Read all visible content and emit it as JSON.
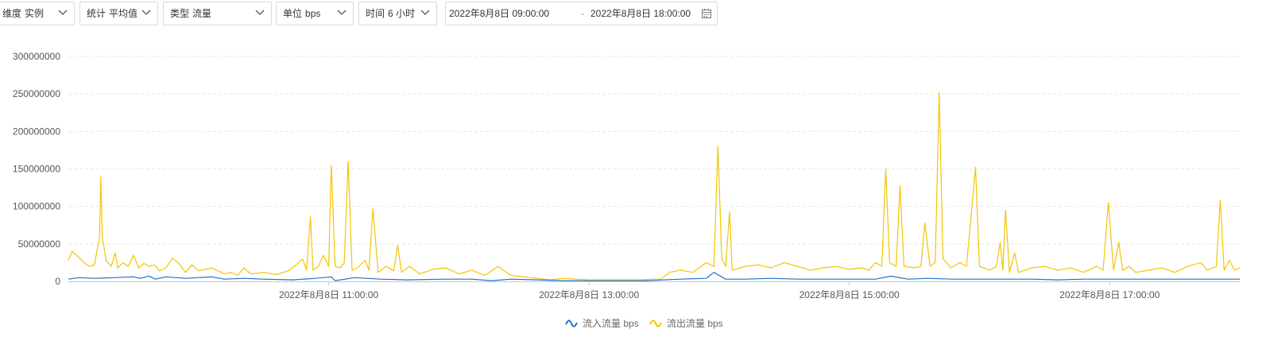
{
  "filters": {
    "dimension": {
      "key": "维度",
      "value": "实例"
    },
    "statistic": {
      "key": "统计",
      "value": "平均值"
    },
    "type": {
      "key": "类型",
      "value": "流量"
    },
    "unit": {
      "key": "单位",
      "value": "bps"
    },
    "time": {
      "key": "时间",
      "value": "6 小时"
    },
    "range": {
      "start": "2022年8月8日 09:00:00",
      "separator": "-",
      "end": "2022年8月8日 18:00:00"
    }
  },
  "colors": {
    "inbound": "#1f72c8",
    "outbound": "#f5c400",
    "grid": "#e8e8e8",
    "axis": "#c8c8c8"
  },
  "chart_data": {
    "type": "line",
    "x_start": "2022-08-08 09:00",
    "x_end": "2022-08-08 18:00",
    "xlim": [
      0,
      9
    ],
    "ylim": [
      0,
      300000000
    ],
    "yticks": [
      0,
      50000000,
      100000000,
      150000000,
      200000000,
      250000000,
      300000000
    ],
    "ytick_labels": [
      "0",
      "50000000",
      "100000000",
      "150000000",
      "200000000",
      "250000000",
      "300000000"
    ],
    "xticks": [
      2,
      4,
      6,
      8
    ],
    "xtick_labels": [
      "2022年8月8日 11:00:00",
      "2022年8月8日 13:00:00",
      "2022年8月8日 15:00:00",
      "2022年8月8日 17:00:00"
    ],
    "grid": true,
    "legend_position": "bottom-center",
    "series": [
      {
        "name": "流入流量 bps",
        "color_key": "inbound",
        "points": [
          [
            0.0,
            3000000
          ],
          [
            0.08,
            5000000
          ],
          [
            0.2,
            4000000
          ],
          [
            0.35,
            5000000
          ],
          [
            0.5,
            6000000
          ],
          [
            0.55,
            4000000
          ],
          [
            0.62,
            7000000
          ],
          [
            0.67,
            3000000
          ],
          [
            0.75,
            6000000
          ],
          [
            0.9,
            4000000
          ],
          [
            1.1,
            6000000
          ],
          [
            1.2,
            3000000
          ],
          [
            1.35,
            4000000
          ],
          [
            1.5,
            3000000
          ],
          [
            1.72,
            2000000
          ],
          [
            1.9,
            4000000
          ],
          [
            2.02,
            6000000
          ],
          [
            2.05,
            1000000
          ],
          [
            2.2,
            5000000
          ],
          [
            2.4,
            3000000
          ],
          [
            2.6,
            2000000
          ],
          [
            2.9,
            3000000
          ],
          [
            3.1,
            3000000
          ],
          [
            3.25,
            1000000
          ],
          [
            3.4,
            3000000
          ],
          [
            3.6,
            2000000
          ],
          [
            3.8,
            1000000
          ],
          [
            4.0,
            1000000
          ],
          [
            4.2,
            1000000
          ],
          [
            4.4,
            1000000
          ],
          [
            4.45,
            1000000
          ],
          [
            4.7,
            3000000
          ],
          [
            4.9,
            4000000
          ],
          [
            4.96,
            12000000
          ],
          [
            5.05,
            3000000
          ],
          [
            5.2,
            3000000
          ],
          [
            5.4,
            4000000
          ],
          [
            5.6,
            3000000
          ],
          [
            5.8,
            3000000
          ],
          [
            6.0,
            3000000
          ],
          [
            6.2,
            3000000
          ],
          [
            6.32,
            7000000
          ],
          [
            6.45,
            3000000
          ],
          [
            6.6,
            4000000
          ],
          [
            6.8,
            3000000
          ],
          [
            7.0,
            3000000
          ],
          [
            7.2,
            3000000
          ],
          [
            7.4,
            3000000
          ],
          [
            7.6,
            2000000
          ],
          [
            7.8,
            3000000
          ],
          [
            8.0,
            3000000
          ],
          [
            8.2,
            3000000
          ],
          [
            8.4,
            3000000
          ],
          [
            8.6,
            3000000
          ],
          [
            8.8,
            3000000
          ],
          [
            9.0,
            3000000
          ]
        ]
      },
      {
        "name": "流出流量 bps",
        "color_key": "outbound",
        "points": [
          [
            0.0,
            28000000
          ],
          [
            0.03,
            40000000
          ],
          [
            0.08,
            32000000
          ],
          [
            0.12,
            25000000
          ],
          [
            0.16,
            20000000
          ],
          [
            0.2,
            22000000
          ],
          [
            0.24,
            60000000
          ],
          [
            0.25,
            140000000
          ],
          [
            0.26,
            60000000
          ],
          [
            0.29,
            28000000
          ],
          [
            0.33,
            20000000
          ],
          [
            0.36,
            38000000
          ],
          [
            0.38,
            18000000
          ],
          [
            0.42,
            25000000
          ],
          [
            0.46,
            20000000
          ],
          [
            0.5,
            35000000
          ],
          [
            0.54,
            18000000
          ],
          [
            0.58,
            24000000
          ],
          [
            0.62,
            20000000
          ],
          [
            0.66,
            22000000
          ],
          [
            0.7,
            14000000
          ],
          [
            0.75,
            18000000
          ],
          [
            0.8,
            31000000
          ],
          [
            0.85,
            24000000
          ],
          [
            0.9,
            12000000
          ],
          [
            0.95,
            22000000
          ],
          [
            1.0,
            14000000
          ],
          [
            1.1,
            18000000
          ],
          [
            1.2,
            10000000
          ],
          [
            1.25,
            12000000
          ],
          [
            1.3,
            8000000
          ],
          [
            1.35,
            18000000
          ],
          [
            1.4,
            10000000
          ],
          [
            1.5,
            12000000
          ],
          [
            1.6,
            9000000
          ],
          [
            1.7,
            15000000
          ],
          [
            1.75,
            22000000
          ],
          [
            1.8,
            30000000
          ],
          [
            1.83,
            15000000
          ],
          [
            1.86,
            86000000
          ],
          [
            1.88,
            15000000
          ],
          [
            1.92,
            20000000
          ],
          [
            1.96,
            35000000
          ],
          [
            2.0,
            20000000
          ],
          [
            2.02,
            155000000
          ],
          [
            2.05,
            20000000
          ],
          [
            2.09,
            18000000
          ],
          [
            2.12,
            25000000
          ],
          [
            2.15,
            160000000
          ],
          [
            2.18,
            15000000
          ],
          [
            2.22,
            18000000
          ],
          [
            2.28,
            28000000
          ],
          [
            2.31,
            15000000
          ],
          [
            2.34,
            97000000
          ],
          [
            2.38,
            12000000
          ],
          [
            2.44,
            20000000
          ],
          [
            2.5,
            14000000
          ],
          [
            2.53,
            48000000
          ],
          [
            2.56,
            12000000
          ],
          [
            2.62,
            20000000
          ],
          [
            2.7,
            10000000
          ],
          [
            2.8,
            16000000
          ],
          [
            2.9,
            18000000
          ],
          [
            3.0,
            10000000
          ],
          [
            3.1,
            15000000
          ],
          [
            3.2,
            8000000
          ],
          [
            3.3,
            20000000
          ],
          [
            3.4,
            8000000
          ],
          [
            3.5,
            6000000
          ],
          [
            3.6,
            4000000
          ],
          [
            3.7,
            2000000
          ],
          [
            3.8,
            4000000
          ],
          [
            3.9,
            3000000
          ],
          [
            4.0,
            2000000
          ],
          [
            4.2,
            2000000
          ],
          [
            4.4,
            2000000
          ],
          [
            4.5,
            3000000
          ],
          [
            4.55,
            3000000
          ],
          [
            4.62,
            12000000
          ],
          [
            4.7,
            15000000
          ],
          [
            4.8,
            12000000
          ],
          [
            4.9,
            25000000
          ],
          [
            4.96,
            20000000
          ],
          [
            4.99,
            180000000
          ],
          [
            5.02,
            30000000
          ],
          [
            5.05,
            20000000
          ],
          [
            5.08,
            93000000
          ],
          [
            5.1,
            15000000
          ],
          [
            5.2,
            20000000
          ],
          [
            5.3,
            22000000
          ],
          [
            5.4,
            18000000
          ],
          [
            5.5,
            25000000
          ],
          [
            5.6,
            20000000
          ],
          [
            5.7,
            15000000
          ],
          [
            5.8,
            18000000
          ],
          [
            5.9,
            20000000
          ],
          [
            6.0,
            16000000
          ],
          [
            6.1,
            18000000
          ],
          [
            6.15,
            15000000
          ],
          [
            6.2,
            25000000
          ],
          [
            6.25,
            20000000
          ],
          [
            6.28,
            150000000
          ],
          [
            6.31,
            25000000
          ],
          [
            6.36,
            20000000
          ],
          [
            6.39,
            128000000
          ],
          [
            6.42,
            20000000
          ],
          [
            6.5,
            18000000
          ],
          [
            6.55,
            20000000
          ],
          [
            6.58,
            78000000
          ],
          [
            6.62,
            20000000
          ],
          [
            6.66,
            25000000
          ],
          [
            6.69,
            252000000
          ],
          [
            6.72,
            30000000
          ],
          [
            6.78,
            18000000
          ],
          [
            6.85,
            25000000
          ],
          [
            6.9,
            20000000
          ],
          [
            6.97,
            152000000
          ],
          [
            7.0,
            20000000
          ],
          [
            7.08,
            15000000
          ],
          [
            7.13,
            20000000
          ],
          [
            7.16,
            52000000
          ],
          [
            7.18,
            15000000
          ],
          [
            7.2,
            95000000
          ],
          [
            7.23,
            12000000
          ],
          [
            7.27,
            38000000
          ],
          [
            7.3,
            12000000
          ],
          [
            7.4,
            18000000
          ],
          [
            7.5,
            20000000
          ],
          [
            7.6,
            15000000
          ],
          [
            7.7,
            18000000
          ],
          [
            7.8,
            12000000
          ],
          [
            7.9,
            20000000
          ],
          [
            7.95,
            15000000
          ],
          [
            7.99,
            105000000
          ],
          [
            8.03,
            15000000
          ],
          [
            8.07,
            52000000
          ],
          [
            8.1,
            15000000
          ],
          [
            8.15,
            20000000
          ],
          [
            8.2,
            12000000
          ],
          [
            8.3,
            15000000
          ],
          [
            8.4,
            18000000
          ],
          [
            8.5,
            12000000
          ],
          [
            8.6,
            20000000
          ],
          [
            8.7,
            25000000
          ],
          [
            8.75,
            15000000
          ],
          [
            8.82,
            20000000
          ],
          [
            8.85,
            108000000
          ],
          [
            8.88,
            15000000
          ],
          [
            8.92,
            28000000
          ],
          [
            8.96,
            15000000
          ],
          [
            9.0,
            18000000
          ]
        ]
      }
    ]
  }
}
